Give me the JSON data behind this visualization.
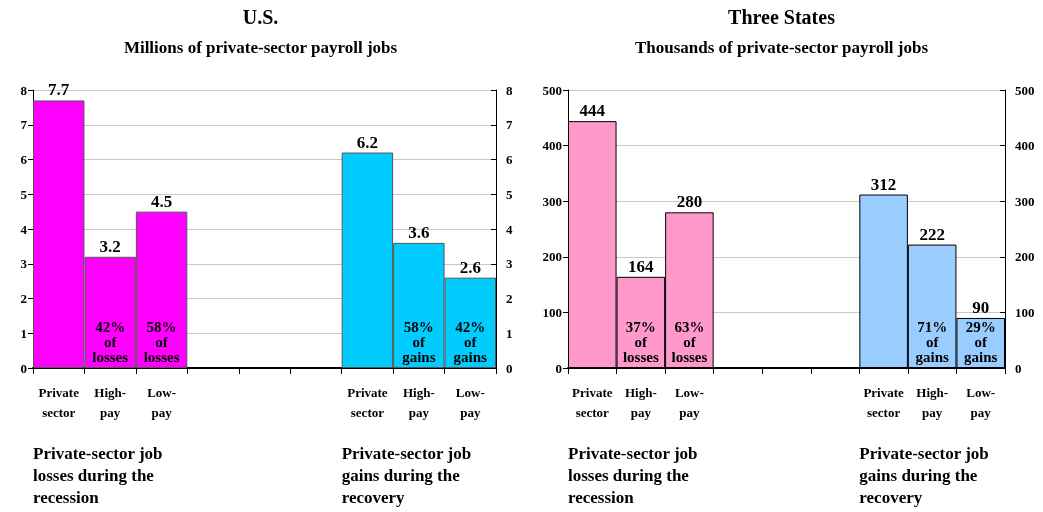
{
  "chart_data": [
    {
      "type": "bar",
      "title": "U.S.",
      "subtitle": "Millions of private-sector payroll jobs",
      "categories": [
        "Private sector",
        "High-pay",
        "Low-pay",
        null,
        null,
        null,
        "Private sector",
        "High-pay",
        "Low-pay"
      ],
      "values": [
        7.7,
        3.2,
        4.5,
        null,
        null,
        null,
        6.2,
        3.6,
        2.6
      ],
      "colors": [
        "#ff00ff",
        "#ff00ff",
        "#ff00ff",
        null,
        null,
        null,
        "#00ccff",
        "#00ccff",
        "#00ccff"
      ],
      "ylim": [
        0,
        8
      ],
      "yticks": [
        0,
        1,
        2,
        3,
        4,
        5,
        6,
        7,
        8
      ],
      "y2lim": [
        0,
        8
      ],
      "y2ticks": [
        0,
        1,
        2,
        3,
        4,
        5,
        6,
        7,
        8
      ],
      "grid": "y",
      "data_labels": true,
      "annotations": [
        "42% of losses",
        "58% of losses",
        "58% of gains",
        "42% of gains",
        "Private-sector job losses during the recession",
        "Private-sector job gains during the recovery"
      ]
    },
    {
      "type": "bar",
      "title": "Three States",
      "subtitle": "Thousands of private-sector payroll jobs",
      "categories": [
        "Private sector",
        "High-pay",
        "Low-pay",
        null,
        null,
        null,
        "Private sector",
        "High-pay",
        "Low-pay"
      ],
      "values": [
        444,
        164,
        280,
        null,
        null,
        null,
        312,
        222,
        90
      ],
      "colors": [
        "#ff99cc",
        "#ff99cc",
        "#ff99cc",
        null,
        null,
        null,
        "#99ccff",
        "#99ccff",
        "#99ccff"
      ],
      "ylim": [
        0,
        500
      ],
      "yticks": [
        0,
        100,
        200,
        300,
        400,
        500
      ],
      "y2lim": [
        0,
        500
      ],
      "y2ticks": [
        0,
        100,
        200,
        300,
        400,
        500
      ],
      "grid": "y",
      "data_labels": true,
      "annotations": [
        "37% of losses",
        "63% of losses",
        "71% of gains",
        "29% of gains",
        "Private-sector job losses during the recession",
        "Private-sector job gains during the recovery"
      ]
    }
  ]
}
